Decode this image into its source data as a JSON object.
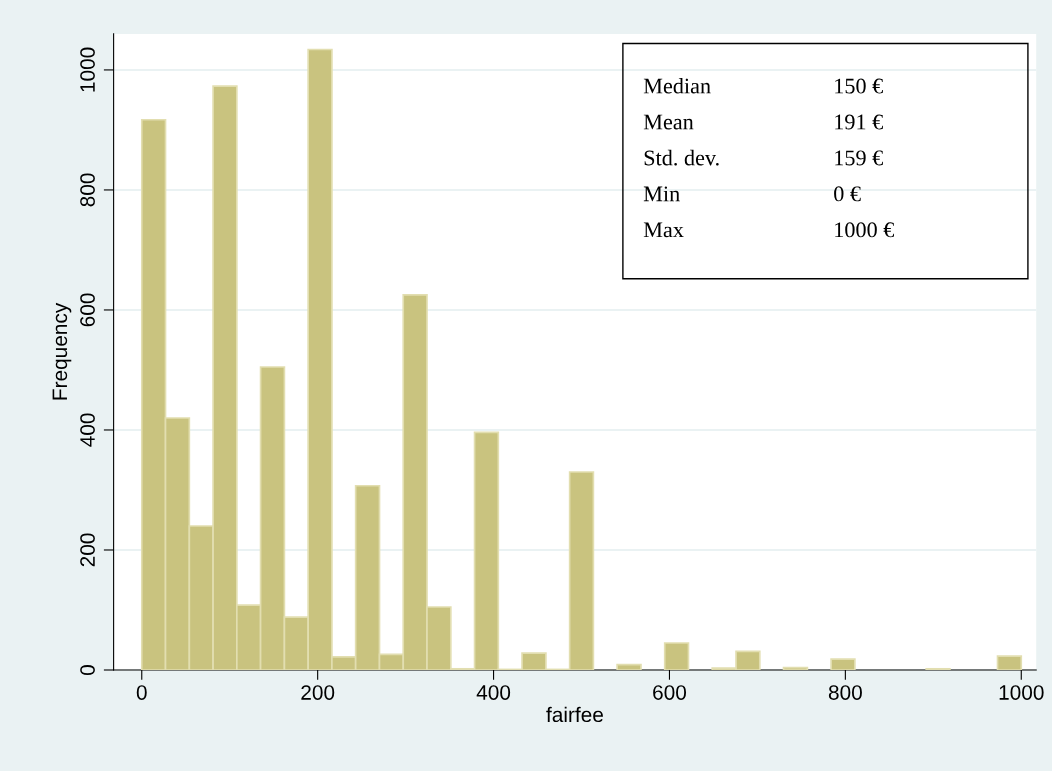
{
  "chart_data": {
    "type": "histogram",
    "xlabel": "fairfee",
    "ylabel": "Frequency",
    "bins": [
      0,
      27.0,
      54.1,
      81.1,
      108.1,
      135.1,
      162.2,
      189.2,
      216.2,
      243.2,
      270.3,
      297.3,
      324.3,
      351.4,
      378.4,
      405.4,
      432.4,
      459.5,
      486.5,
      513.5,
      540.5,
      567.6,
      594.6,
      621.6,
      648.6,
      675.7,
      702.7,
      729.7,
      756.8,
      783.8,
      810.8,
      837.8,
      864.9,
      891.9,
      918.9,
      945.9,
      973.0,
      1000
    ],
    "values": [
      917,
      420,
      240,
      973,
      108,
      505,
      88,
      1034,
      22,
      307,
      26,
      625,
      105,
      2,
      396,
      1,
      28,
      1,
      330,
      0,
      9,
      0,
      45,
      0,
      3,
      31,
      0,
      4,
      0,
      18,
      0,
      0,
      0,
      2,
      0,
      0,
      23
    ],
    "color": "#c9c37f",
    "xlim": [
      -32,
      1017
    ],
    "ylim": [
      0,
      1060
    ],
    "xticks": [
      0,
      200,
      400,
      600,
      800,
      1000
    ],
    "yticks": [
      0,
      200,
      400,
      600,
      800,
      1000
    ],
    "grid": "y",
    "annotations": [
      "Median",
      "150 €",
      "Mean",
      "191 €",
      "Std. dev.",
      "159 €",
      "Min",
      "0 €",
      "Max",
      "1000 €"
    ]
  }
}
